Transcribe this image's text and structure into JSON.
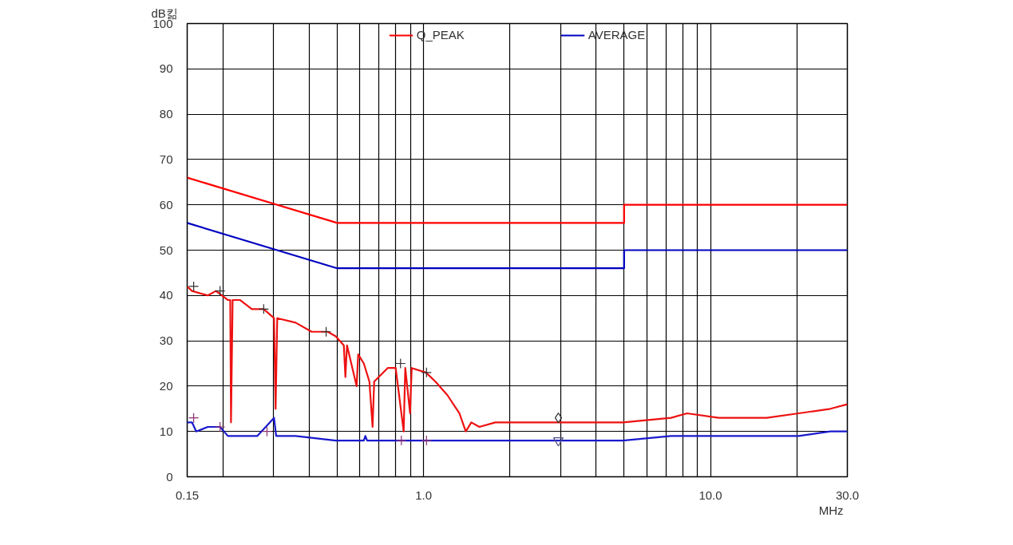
{
  "chart_data": {
    "type": "line",
    "ylabel": "dB킮",
    "xlabel": "MHz",
    "log": "x",
    "grid": true,
    "legend": "top",
    "marker": "none",
    "line_style": "solid",
    "xlim": [
      0.15,
      30
    ],
    "ylim": [
      0,
      100
    ],
    "xticks": [
      {
        "value": 0.15,
        "label": "0.15"
      },
      {
        "value": 0.2,
        "label": null
      },
      {
        "value": 0.3,
        "label": null
      },
      {
        "value": 0.4,
        "label": null
      },
      {
        "value": 0.5,
        "label": null
      },
      {
        "value": 0.6,
        "label": null
      },
      {
        "value": 0.7,
        "label": null
      },
      {
        "value": 0.8,
        "label": null
      },
      {
        "value": 0.9,
        "label": null
      },
      {
        "value": 1,
        "label": "1.0"
      },
      {
        "value": 2,
        "label": null
      },
      {
        "value": 3,
        "label": null
      },
      {
        "value": 4,
        "label": null
      },
      {
        "value": 5,
        "label": null
      },
      {
        "value": 6,
        "label": null
      },
      {
        "value": 7,
        "label": null
      },
      {
        "value": 8,
        "label": null
      },
      {
        "value": 9,
        "label": null
      },
      {
        "value": 10,
        "label": "10.0"
      },
      {
        "value": 20,
        "label": null
      },
      {
        "value": 30,
        "label": "30.0"
      }
    ],
    "yticks": [
      0,
      10,
      20,
      30,
      40,
      50,
      60,
      70,
      80,
      90,
      100
    ],
    "series": [
      {
        "name": "Q_PEAK",
        "color": "#ff0000",
        "x": [
          0.15,
          0.5,
          5,
          5,
          30
        ],
        "values": [
          66,
          56,
          56,
          60,
          60
        ]
      },
      {
        "name": "AVERAGE",
        "color": "#0000c0",
        "x": [
          0.15,
          0.5,
          5,
          5,
          30
        ],
        "values": [
          56,
          46,
          46,
          50,
          50
        ]
      },
      {
        "color": "#ee1111",
        "x": [
          0.15,
          0.1559,
          0.177,
          0.1888,
          0.2079,
          0.2119,
          0.2132,
          0.216,
          0.229,
          0.252,
          0.2772,
          0.3011,
          0.305,
          0.309,
          0.3582,
          0.4072,
          0.4632,
          0.4942,
          0.5272,
          0.534,
          0.5409,
          0.5843,
          0.5918,
          0.619,
          0.6474,
          0.6641,
          0.6727,
          0.7498,
          0.7994,
          0.8523,
          0.8634,
          0.8974,
          0.909,
          1.0196,
          1.1,
          1.211,
          1.333,
          1.403,
          1.467,
          1.565,
          1.779,
          2.968,
          4.954,
          7.289,
          8.289,
          10.68,
          15.7,
          20.3,
          26.2,
          30
        ],
        "values": [
          42,
          41,
          40,
          41,
          39,
          39,
          12,
          39,
          39,
          37,
          37,
          35,
          15,
          35,
          34,
          32,
          32,
          31,
          29,
          22,
          29,
          20,
          27,
          25,
          21,
          11,
          21,
          24,
          24,
          10,
          24,
          14,
          24,
          23,
          21,
          18,
          14,
          10,
          12,
          11,
          12,
          12,
          12,
          13,
          14,
          13,
          13,
          14,
          15,
          16
        ]
      },
      {
        "color": "#1a1acc",
        "x": [
          0.15,
          0.1559,
          0.1613,
          0.177,
          0.1953,
          0.2079,
          0.229,
          0.2631,
          0.3011,
          0.3064,
          0.3582,
          0.4942,
          0.619,
          0.6266,
          0.6359,
          0.7198,
          1.0,
          1.565,
          2.968,
          4.954,
          7.289,
          8.289,
          10.68,
          15.7,
          20.3,
          26.2,
          30
        ],
        "values": [
          12,
          12,
          10,
          11,
          11,
          9,
          9,
          9,
          13,
          9,
          9,
          8,
          8,
          9,
          8,
          8,
          8,
          8,
          8,
          8,
          9,
          9,
          9,
          9,
          9,
          10,
          10
        ]
      },
      {
        "type": "scatter",
        "marker": "cross",
        "color": "#303030",
        "x": [
          0.158,
          0.1953,
          0.2772,
          0.4575,
          0.8312,
          1.024
        ],
        "values": [
          42,
          41,
          37,
          32,
          25,
          23
        ]
      },
      {
        "type": "scatter",
        "marker": "diamond",
        "color": "#303030",
        "x": [
          2.95
        ],
        "values": [
          13
        ]
      },
      {
        "type": "scatter",
        "marker": "cross",
        "color": "#8a3070",
        "x": [
          0.158,
          0.1953,
          0.2846,
          0.8367,
          1.024
        ],
        "values": [
          13,
          11,
          10,
          8,
          8
        ]
      },
      {
        "type": "scatter",
        "marker": "triangle",
        "color": "#505080",
        "x": [
          2.95
        ],
        "values": [
          8
        ]
      }
    ]
  }
}
